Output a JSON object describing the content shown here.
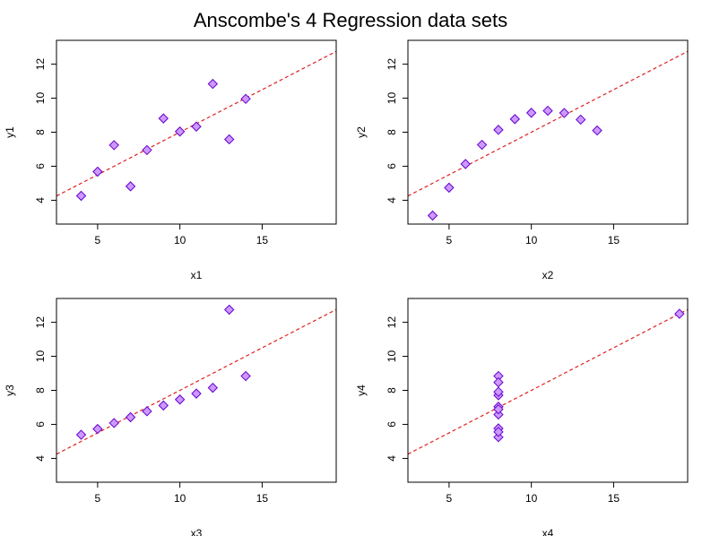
{
  "title": "Anscombe's 4 Regression data sets",
  "colors": {
    "point_fill": "#cc99ff",
    "point_stroke": "#6600cc",
    "fit_line": "#e02020",
    "axis": "#000000"
  },
  "chart_data": [
    {
      "type": "scatter",
      "title": "",
      "xlabel": "x1",
      "ylabel": "y1",
      "xlim": [
        2.5,
        19.5
      ],
      "ylim": [
        2.6,
        13.4
      ],
      "xticks": [
        "5",
        "10",
        "15"
      ],
      "yticks": [
        "4",
        "6",
        "8",
        "10",
        "12"
      ],
      "x": [
        10,
        8,
        13,
        9,
        11,
        14,
        6,
        4,
        12,
        7,
        5
      ],
      "y": [
        8.04,
        6.95,
        7.58,
        8.81,
        8.33,
        9.96,
        7.24,
        4.26,
        10.84,
        4.82,
        5.68
      ],
      "fit": {
        "intercept": 3.0,
        "slope": 0.5
      }
    },
    {
      "type": "scatter",
      "title": "",
      "xlabel": "x2",
      "ylabel": "y2",
      "xlim": [
        2.5,
        19.5
      ],
      "ylim": [
        2.6,
        13.4
      ],
      "xticks": [
        "5",
        "10",
        "15"
      ],
      "yticks": [
        "4",
        "6",
        "8",
        "10",
        "12"
      ],
      "x": [
        10,
        8,
        13,
        9,
        11,
        14,
        6,
        4,
        12,
        7,
        5
      ],
      "y": [
        9.14,
        8.14,
        8.74,
        8.77,
        9.26,
        8.1,
        6.13,
        3.1,
        9.13,
        7.26,
        4.74
      ],
      "fit": {
        "intercept": 3.0,
        "slope": 0.5
      }
    },
    {
      "type": "scatter",
      "title": "",
      "xlabel": "x3",
      "ylabel": "y3",
      "xlim": [
        2.5,
        19.5
      ],
      "ylim": [
        2.6,
        13.4
      ],
      "xticks": [
        "5",
        "10",
        "15"
      ],
      "yticks": [
        "4",
        "6",
        "8",
        "10",
        "12"
      ],
      "x": [
        10,
        8,
        13,
        9,
        11,
        14,
        6,
        4,
        12,
        7,
        5
      ],
      "y": [
        7.46,
        6.77,
        12.74,
        7.11,
        7.81,
        8.84,
        6.08,
        5.39,
        8.15,
        6.42,
        5.73
      ],
      "fit": {
        "intercept": 3.0,
        "slope": 0.5
      }
    },
    {
      "type": "scatter",
      "title": "",
      "xlabel": "x4",
      "ylabel": "y4",
      "xlim": [
        2.5,
        19.5
      ],
      "ylim": [
        2.6,
        13.4
      ],
      "xticks": [
        "5",
        "10",
        "15"
      ],
      "yticks": [
        "4",
        "6",
        "8",
        "10",
        "12"
      ],
      "x": [
        8,
        8,
        8,
        8,
        8,
        8,
        8,
        19,
        8,
        8,
        8
      ],
      "y": [
        6.58,
        5.76,
        7.71,
        8.84,
        8.47,
        7.04,
        5.25,
        12.5,
        5.56,
        7.91,
        6.89
      ],
      "fit": {
        "intercept": 3.0,
        "slope": 0.5
      }
    }
  ]
}
